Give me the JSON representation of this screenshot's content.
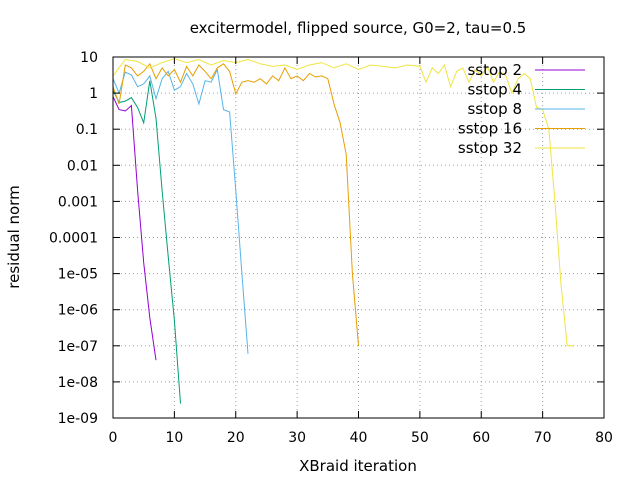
{
  "chart_data": {
    "type": "line",
    "title": "excitermodel, flipped source, G0=2, tau=0.5",
    "xlabel": "XBraid iteration",
    "ylabel": "residual norm",
    "xlim": [
      0,
      80
    ],
    "ylim": [
      1e-09,
      10
    ],
    "yscale": "log",
    "grid": true,
    "legend_position": "top-right",
    "x_ticks": [
      {
        "value": 0,
        "label": "0"
      },
      {
        "value": 10,
        "label": "10"
      },
      {
        "value": 20,
        "label": "20"
      },
      {
        "value": 30,
        "label": "30"
      },
      {
        "value": 40,
        "label": "40"
      },
      {
        "value": 50,
        "label": "50"
      },
      {
        "value": 60,
        "label": "60"
      },
      {
        "value": 70,
        "label": "70"
      },
      {
        "value": 80,
        "label": "80"
      }
    ],
    "y_ticks": [
      {
        "value": 10,
        "label": "10"
      },
      {
        "value": 1,
        "label": "1"
      },
      {
        "value": 0.1,
        "label": "0.1"
      },
      {
        "value": 0.01,
        "label": "0.01"
      },
      {
        "value": 0.001,
        "label": "0.001"
      },
      {
        "value": 0.0001,
        "label": "0.0001"
      },
      {
        "value": 1e-05,
        "label": "1e-05"
      },
      {
        "value": 1e-06,
        "label": "1e-06"
      },
      {
        "value": 1e-07,
        "label": "1e-07"
      },
      {
        "value": 1e-08,
        "label": "1e-08"
      },
      {
        "value": 1e-09,
        "label": "1e-09"
      }
    ],
    "series": [
      {
        "name": "sstop 2",
        "color": "#9400d3",
        "x": [
          0,
          1,
          2,
          3,
          4,
          5,
          6,
          7
        ],
        "y": [
          0.8,
          0.35,
          0.32,
          0.45,
          0.002,
          2e-05,
          6e-07,
          4e-08
        ]
      },
      {
        "name": "sstop 4",
        "color": "#009e73",
        "x": [
          0,
          1,
          2,
          3,
          4,
          5,
          6,
          7,
          8,
          9,
          10,
          11
        ],
        "y": [
          1.2,
          0.55,
          0.6,
          0.75,
          0.4,
          0.15,
          2.2,
          0.2,
          0.002,
          3e-05,
          5e-07,
          2.5e-09
        ]
      },
      {
        "name": "sstop 8",
        "color": "#56b4e9",
        "x": [
          0,
          1,
          2,
          3,
          4,
          5,
          6,
          7,
          8,
          9,
          10,
          11,
          12,
          13,
          14,
          15,
          16,
          17,
          18,
          19,
          20,
          21,
          22
        ],
        "y": [
          2.5,
          1.0,
          3.8,
          3.2,
          1.5,
          1.8,
          3.0,
          0.7,
          2.5,
          4.0,
          1.2,
          1.5,
          3.5,
          1.8,
          0.5,
          2.2,
          2.0,
          4.5,
          0.35,
          0.3,
          0.002,
          1e-05,
          6e-08
        ]
      },
      {
        "name": "sstop 16",
        "color": "#e69f00",
        "x": [
          0,
          1,
          2,
          3,
          4,
          5,
          6,
          7,
          8,
          9,
          10,
          11,
          12,
          13,
          14,
          15,
          16,
          17,
          18,
          19,
          20,
          21,
          22,
          23,
          24,
          25,
          26,
          27,
          28,
          29,
          30,
          31,
          32,
          33,
          34,
          35,
          36,
          37,
          38,
          39,
          40
        ],
        "y": [
          1.5,
          0.5,
          6.0,
          5.0,
          3.0,
          4.0,
          6.5,
          2.5,
          5.0,
          3.0,
          4.5,
          2.0,
          5.5,
          3.0,
          6.0,
          4.0,
          2.5,
          5.0,
          6.5,
          4.0,
          0.95,
          2.0,
          2.2,
          2.0,
          2.5,
          1.8,
          3.0,
          2.2,
          5.0,
          2.5,
          3.0,
          2.2,
          3.5,
          2.8,
          3.0,
          2.5,
          0.5,
          0.15,
          0.02,
          1e-05,
          1e-07
        ]
      },
      {
        "name": "sstop 32",
        "color": "#f0e442",
        "x": [
          0,
          2,
          4,
          6,
          8,
          10,
          12,
          14,
          16,
          18,
          20,
          22,
          24,
          26,
          28,
          30,
          32,
          34,
          36,
          38,
          40,
          42,
          44,
          46,
          48,
          50,
          51,
          52,
          53,
          54,
          55,
          56,
          57,
          58,
          59,
          60,
          61,
          62,
          63,
          64,
          65,
          66,
          67,
          68,
          69,
          70,
          71,
          72,
          73,
          74,
          75
        ],
        "y": [
          3.0,
          8.5,
          7.5,
          5.0,
          7.0,
          9.0,
          7.0,
          8.5,
          6.0,
          8.0,
          7.0,
          8.5,
          6.5,
          5.5,
          6.0,
          4.5,
          6.0,
          7.0,
          5.0,
          6.5,
          4.5,
          6.0,
          5.5,
          5.0,
          6.0,
          5.5,
          2.0,
          5.0,
          3.5,
          6.0,
          1.5,
          4.0,
          5.0,
          2.0,
          4.5,
          3.0,
          5.5,
          2.0,
          4.0,
          3.0,
          1.0,
          2.5,
          3.5,
          2.5,
          0.4,
          0.35,
          0.1,
          0.001,
          5e-06,
          1e-07,
          1e-07
        ]
      }
    ]
  }
}
